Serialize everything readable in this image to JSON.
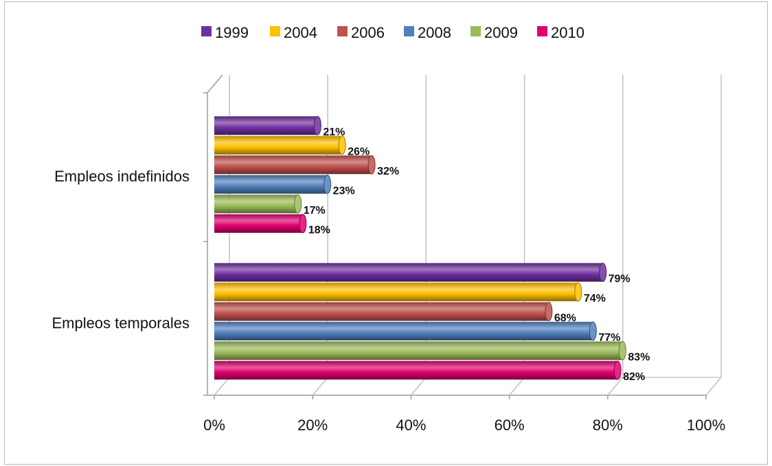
{
  "chart_data": {
    "type": "bar",
    "orientation": "horizontal",
    "style": "3d-cylinder",
    "title": "",
    "xlabel": "",
    "ylabel": "",
    "categories": [
      "Empleos indefinidos",
      "Empleos temporales"
    ],
    "xlim": [
      0,
      100
    ],
    "x_ticks": [
      "0%",
      "20%",
      "40%",
      "60%",
      "80%",
      "100%"
    ],
    "legend_position": "top",
    "grid": true,
    "series": [
      {
        "name": "1999",
        "color": "#7030A0",
        "values": [
          21,
          79
        ],
        "labels": [
          "21%",
          "79%"
        ]
      },
      {
        "name": "2004",
        "color": "#FFC000",
        "values": [
          26,
          74
        ],
        "labels": [
          "26%",
          "74%"
        ]
      },
      {
        "name": "2006",
        "color": "#C0504D",
        "values": [
          32,
          68
        ],
        "labels": [
          "32%",
          "68%"
        ]
      },
      {
        "name": "2008",
        "color": "#4F81BD",
        "values": [
          23,
          77
        ],
        "labels": [
          "23%",
          "77%"
        ]
      },
      {
        "name": "2009",
        "color": "#9BBB59",
        "values": [
          17,
          83
        ],
        "labels": [
          "17%",
          "83%"
        ]
      },
      {
        "name": "2010",
        "color": "#E0006F",
        "values": [
          18,
          82
        ],
        "labels": [
          "18%",
          "82%"
        ]
      }
    ]
  }
}
